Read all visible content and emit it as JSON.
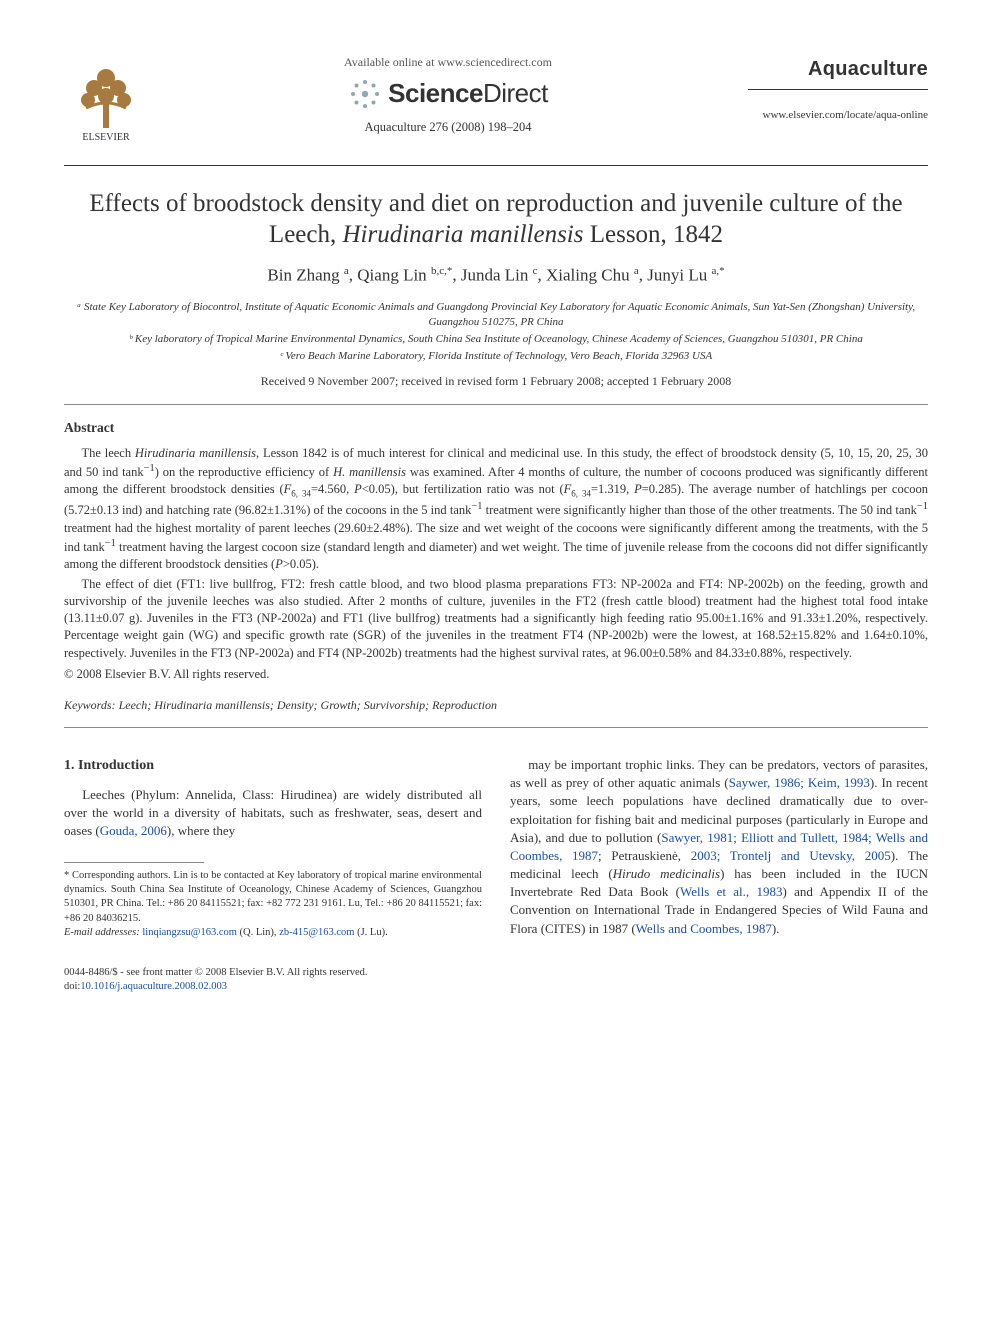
{
  "header": {
    "available_online": "Available online at www.sciencedirect.com",
    "sd_brand_a": "Science",
    "sd_brand_b": "Direct",
    "citation": "Aquaculture 276 (2008) 198–204",
    "journal_name": "Aquaculture",
    "journal_url": "www.elsevier.com/locate/aqua-online",
    "elsevier_label": "ELSEVIER",
    "elsevier_tree_color": "#a77b3f",
    "sd_burst_color": "#8fa7b0"
  },
  "title_parts": {
    "pre": "Effects of broodstock density and diet on reproduction and juvenile culture of the Leech, ",
    "italic": "Hirudinaria manillensis",
    "post": " Lesson, 1842"
  },
  "authors_html": "Bin Zhang <sup>a</sup>, Qiang Lin <sup>b,c,*</sup>, Junda Lin <sup>c</sup>, Xialing Chu <sup>a</sup>, Junyi Lu <sup>a,*</sup>",
  "affiliations": [
    "ᵃ State Key Laboratory of Biocontrol, Institute of Aquatic Economic Animals and Guangdong Provincial Key Laboratory for Aquatic Economic Animals, Sun Yat-Sen (Zhongshan) University, Guangzhou 510275, PR China",
    "ᵇ Key laboratory of Tropical Marine Environmental Dynamics, South China Sea Institute of Oceanology, Chinese Academy of Sciences, Guangzhou 510301, PR China",
    "ᶜ Vero Beach Marine Laboratory, Florida Institute of Technology, Vero Beach, Florida 32963 USA"
  ],
  "dates": "Received 9 November 2007; received in revised form 1 February 2008; accepted 1 February 2008",
  "abstract": {
    "heading": "Abstract",
    "p1": "The leech <em>Hirudinaria manillensis</em>, Lesson 1842 is of much interest for clinical and medicinal use. In this study, the effect of broodstock density (5, 10, 15, 20, 25, 30 and 50 ind tank<sup>−1</sup>) on the reproductive efficiency of <em>H. manillensis</em> was examined. After 4 months of culture, the number of cocoons produced was significantly different among the different broodstock densities (<em>F</em><sub>6, 34</sub>=4.560, <em>P</em><0.05), but fertilization ratio was not (<em>F</em><sub>6, 34</sub>=1.319, <em>P</em>=0.285). The average number of hatchlings per cocoon (5.72±0.13 ind) and hatching rate (96.82±1.31%) of the cocoons in the 5 ind tank<sup>−1</sup> treatment were significantly higher than those of the other treatments. The 50 ind tank<sup>−1</sup> treatment had the highest mortality of parent leeches (29.60±2.48%). The size and wet weight of the cocoons were significantly different among the treatments, with the 5 ind tank<sup>−1</sup> treatment having the largest cocoon size (standard length and diameter) and wet weight. The time of juvenile release from the cocoons did not differ significantly among the different broodstock densities (<em>P</em>>0.05).",
    "p2": "The effect of diet (FT1: live bullfrog, FT2: fresh cattle blood, and two blood plasma preparations FT3: NP-2002a and FT4: NP-2002b) on the feeding, growth and survivorship of the juvenile leeches was also studied. After 2 months of culture, juveniles in the FT2 (fresh cattle blood) treatment had the highest total food intake (13.11±0.07 g). Juveniles in the FT3 (NP-2002a) and FT1 (live bullfrog) treatments had a significantly high feeding ratio 95.00±1.16% and 91.33±1.20%, respectively. Percentage weight gain (WG) and specific growth rate (SGR) of the juveniles in the treatment FT4 (NP-2002b) were the lowest, at 168.52±15.82% and 1.64±0.10%, respectively. Juveniles in the FT3 (NP-2002a) and FT4 (NP-2002b) treatments had the highest survival rates, at 96.00±0.58% and 84.33±0.88%, respectively.",
    "copyright": "© 2008 Elsevier B.V. All rights reserved."
  },
  "keywords": {
    "label": "Keywords:",
    "text": " Leech; Hirudinaria manillensis; Density; Growth; Survivorship; Reproduction"
  },
  "intro": {
    "heading": "1. Introduction",
    "left_html": "Leeches (Phylum: Annelida, Class: Hirudinea) are widely distributed all over the world in a diversity of habitats, such as freshwater, seas, desert and oases (<span class=\"ref-link\">Gouda, 2006</span>), where they",
    "right_html": "may be important trophic links. They can be predators, vectors of parasites, as well as prey of other aquatic animals (<span class=\"ref-link\">Saywer, 1986; Keim, 1993</span>). In recent years, some leech populations have declined dramatically due to over-exploitation for fishing bait and medicinal purposes (particularly in Europe and Asia), and due to pollution (<span class=\"ref-link\">Sawyer, 1981; Elliott and Tullett, 1984; Wells and Coombes, 1987</span>; Petrauskienė, <span class=\"ref-link\">2003; Trontelj and Utevsky, 2005</span>). The medicinal leech (<em>Hirudo medicinalis</em>) has been included in the IUCN Invertebrate Red Data Book (<span class=\"ref-link\">Wells et al., 1983</span>) and Appendix II of the Convention on International Trade in Endangered Species of Wild Fauna and Flora (CITES) in 1987 (<span class=\"ref-link\">Wells and Coombes, 1987</span>)."
  },
  "footnotes": {
    "corr": "* Corresponding authors. Lin is to be contacted at Key laboratory of tropical marine environmental dynamics. South China Sea Institute of Oceanology, Chinese Academy of Sciences, Guangzhou 510301, PR China. Tel.: +86 20 84115521; fax: +82 772 231 9161. Lu, Tel.: +86 20 84115521; fax: +86 20 84036215.",
    "email_label": "E-mail addresses:",
    "email1": "linqiangzsu@163.com",
    "email1_who": " (Q. Lin), ",
    "email2": "zb-415@163.com",
    "email2_who": " (J. Lu)."
  },
  "footer": {
    "issn_line": "0044-8486/$ - see front matter © 2008 Elsevier B.V. All rights reserved.",
    "doi_label": "doi:",
    "doi": "10.1016/j.aquaculture.2008.02.003"
  },
  "colors": {
    "link": "#1b4fa0",
    "text": "#333333",
    "rule": "#333333",
    "light_rule": "#888888"
  }
}
